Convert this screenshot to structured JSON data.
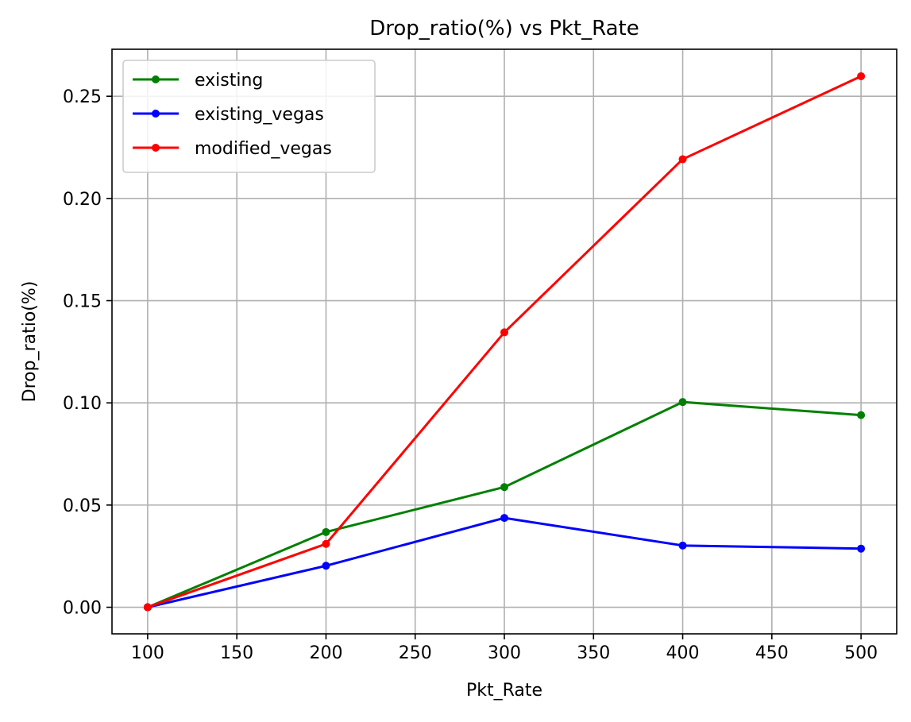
{
  "chart_data": {
    "type": "line",
    "title": "Drop_ratio(%) vs Pkt_Rate",
    "xlabel": "Pkt_Rate",
    "ylabel": "Drop_ratio(%)",
    "x": [
      100,
      200,
      300,
      400,
      500
    ],
    "xlim": [
      80,
      520
    ],
    "ylim": [
      -0.013,
      0.273
    ],
    "xticks": [
      100,
      150,
      200,
      250,
      300,
      350,
      400,
      450,
      500
    ],
    "yticks": [
      0.0,
      0.05,
      0.1,
      0.15,
      0.2,
      0.25
    ],
    "ytick_labels": [
      "0.00",
      "0.05",
      "0.10",
      "0.15",
      "0.20",
      "0.25"
    ],
    "grid": true,
    "legend_position": "top-left",
    "marker": "circle",
    "series": [
      {
        "name": "existing",
        "color": "#008000",
        "values": [
          0.0,
          0.0368,
          0.0588,
          0.1004,
          0.094
        ]
      },
      {
        "name": "existing_vegas",
        "color": "#0000ff",
        "values": [
          0.0,
          0.0203,
          0.0437,
          0.0302,
          0.0287
        ]
      },
      {
        "name": "modified_vegas",
        "color": "#ff0000",
        "values": [
          0.0,
          0.031,
          0.1345,
          0.2192,
          0.2598
        ]
      }
    ]
  }
}
